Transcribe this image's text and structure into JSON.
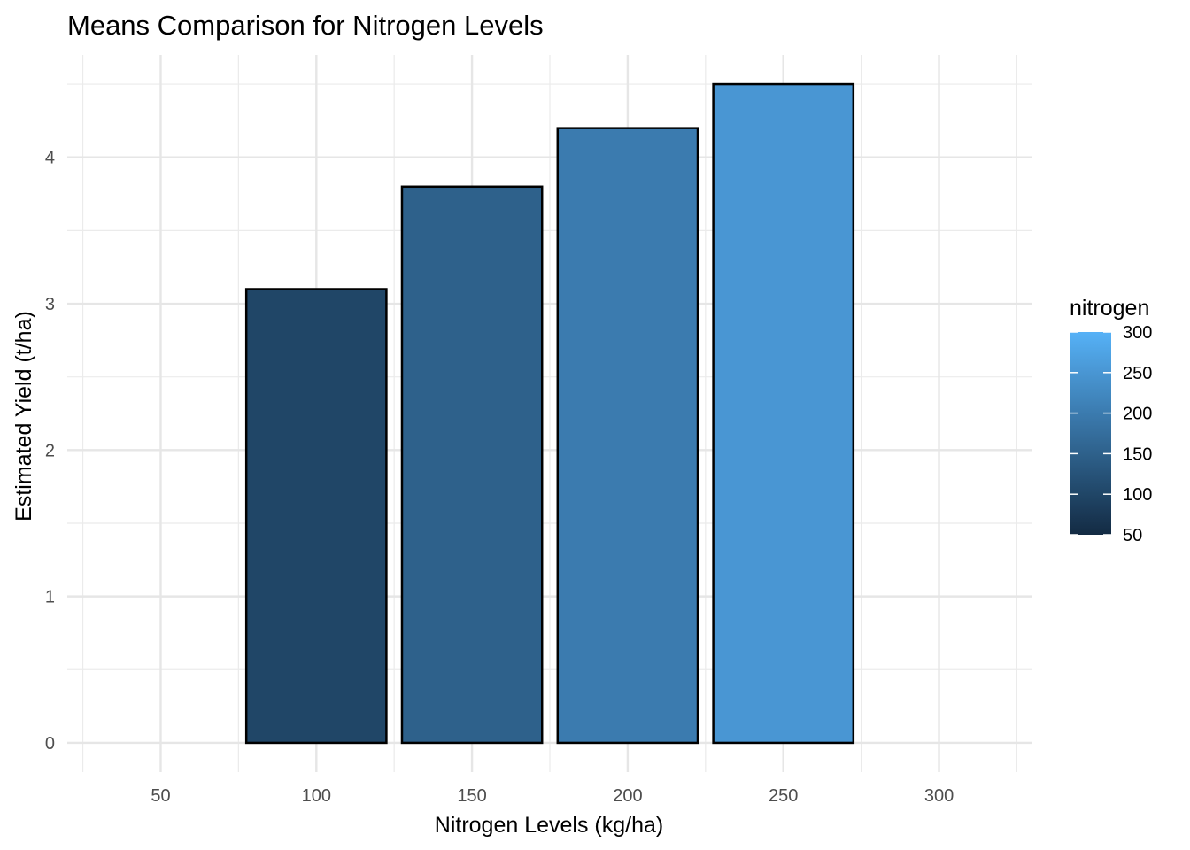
{
  "chart_data": {
    "type": "bar",
    "title": "Means Comparison for Nitrogen Levels",
    "xlabel": "Nitrogen Levels (kg/ha)",
    "ylabel": "Estimated Yield (t/ha)",
    "x": [
      100,
      150,
      200,
      250
    ],
    "values": [
      3.1,
      3.8,
      4.2,
      4.5
    ],
    "bar_width": 45,
    "xlim": [
      20,
      330
    ],
    "ylim": [
      -0.2,
      4.7
    ],
    "x_ticks": [
      50,
      100,
      150,
      200,
      250,
      300
    ],
    "y_ticks": [
      0,
      1,
      2,
      3,
      4
    ],
    "grid": true,
    "bar_outline_color": "#000000",
    "fill_scale": {
      "variable": "nitrogen",
      "domain": [
        50,
        300
      ],
      "low_color": "#132B43",
      "high_color": "#56B1F7"
    },
    "legend": {
      "title": "nitrogen",
      "placement": "right",
      "ticks": [
        50,
        100,
        150,
        200,
        250,
        300
      ]
    }
  }
}
